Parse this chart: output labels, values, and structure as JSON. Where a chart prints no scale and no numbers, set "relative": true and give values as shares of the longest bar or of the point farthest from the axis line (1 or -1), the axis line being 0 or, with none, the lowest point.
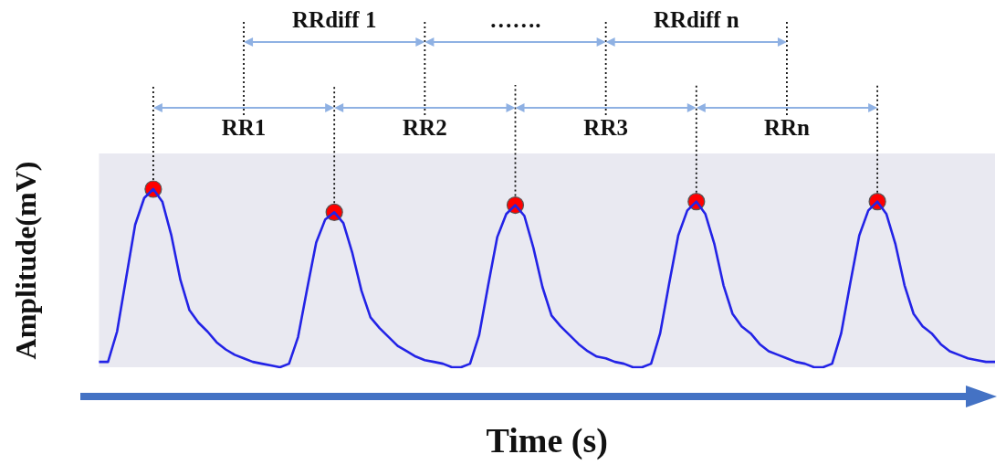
{
  "chart_data": {
    "type": "line",
    "relative": true,
    "xlabel": "Time (s)",
    "ylabel": "Amplitude(mV)",
    "categories": [
      null,
      null,
      null,
      null,
      null,
      null,
      null,
      null,
      null,
      null,
      null,
      null,
      null,
      null,
      null,
      null,
      null,
      null,
      null,
      null,
      null,
      null,
      null,
      null,
      null,
      null,
      null,
      null,
      null,
      null,
      null,
      null,
      null,
      null,
      null,
      null,
      null,
      null,
      null,
      null,
      null,
      null,
      null,
      null,
      null,
      null,
      null,
      null,
      null,
      null,
      null,
      null,
      null,
      null,
      null,
      null,
      null,
      null,
      null,
      null,
      null,
      null,
      null,
      null,
      null,
      null,
      null,
      null,
      null,
      null,
      null,
      null,
      null,
      null,
      null,
      null,
      null,
      null,
      null,
      null,
      null,
      null,
      null,
      null,
      null,
      null,
      null,
      null,
      null,
      null,
      null,
      null,
      null,
      null,
      null,
      null,
      null,
      null,
      null,
      null
    ],
    "series": [
      {
        "color": "#2323e6",
        "marker": "none",
        "values": [
          0.03,
          0.03,
          0.2,
          0.5,
          0.8,
          0.95,
          1,
          0.93,
          0.74,
          0.49,
          0.32,
          0.25,
          0.2,
          0.14,
          0.1,
          0.07,
          0.05,
          0.03,
          0.02,
          0.01,
          0,
          0.02,
          0.17,
          0.44,
          0.7,
          0.83,
          0.87,
          0.81,
          0.64,
          0.43,
          0.28,
          0.22,
          0.17,
          0.12,
          0.09,
          0.06,
          0.04,
          0.03,
          0.02,
          0,
          0,
          0.02,
          0.18,
          0.46,
          0.73,
          0.86,
          0.91,
          0.85,
          0.67,
          0.45,
          0.29,
          0.23,
          0.18,
          0.13,
          0.09,
          0.06,
          0.05,
          0.03,
          0.02,
          0,
          0,
          0.02,
          0.19,
          0.47,
          0.74,
          0.88,
          0.93,
          0.86,
          0.69,
          0.46,
          0.3,
          0.23,
          0.19,
          0.13,
          0.09,
          0.07,
          0.05,
          0.03,
          0.02,
          0,
          0,
          0.02,
          0.19,
          0.47,
          0.74,
          0.88,
          0.93,
          0.86,
          0.69,
          0.46,
          0.3,
          0.23,
          0.19,
          0.13,
          0.09,
          0.07,
          0.05,
          0.04,
          0.03,
          0.03
        ]
      }
    ],
    "annotations": [
      "RR1",
      "RR2",
      "RR3",
      "RRn",
      "RRdiff 1",
      "…….",
      "RRdiff n"
    ],
    "legend": false
  }
}
